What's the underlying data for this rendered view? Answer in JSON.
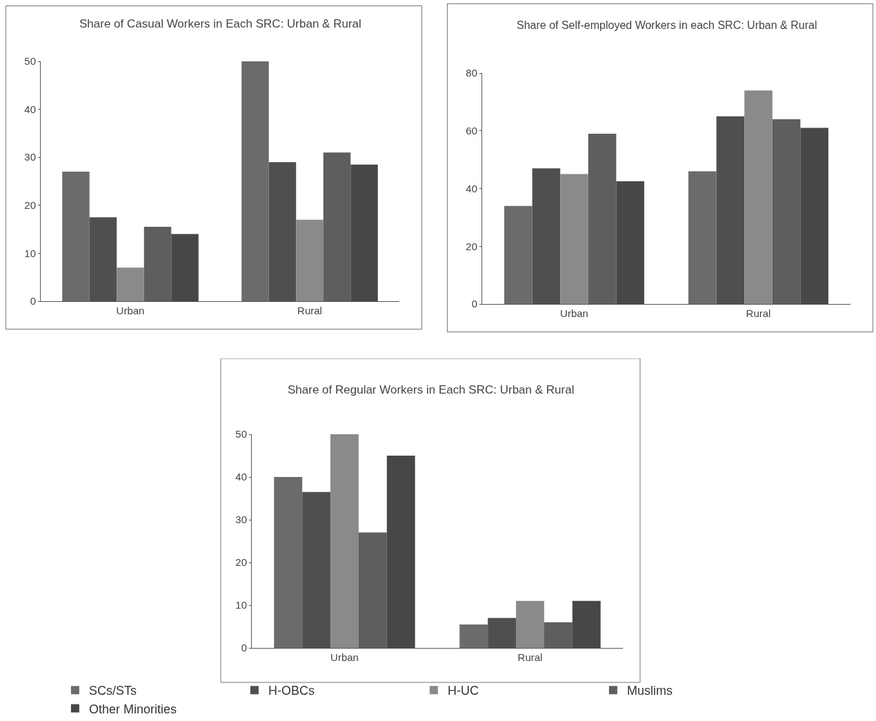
{
  "chart_data": [
    {
      "type": "bar",
      "title": "Share of Casual Workers in Each SRC: Urban & Rural",
      "categories": [
        "Urban",
        "Rural"
      ],
      "ylim": [
        0,
        50
      ],
      "yticks": [
        0,
        10,
        20,
        30,
        40,
        50
      ],
      "grid": false,
      "legend": false,
      "series": [
        {
          "color": "#6b6b6b",
          "values": [
            27,
            50
          ]
        },
        {
          "color": "#4f4f4f",
          "values": [
            17.5,
            29
          ]
        },
        {
          "color": "#8a8a8a",
          "values": [
            7,
            17
          ]
        },
        {
          "color": "#5e5e5e",
          "values": [
            15.5,
            31
          ]
        },
        {
          "color": "#474747",
          "values": [
            14,
            28.5
          ]
        }
      ]
    },
    {
      "type": "bar",
      "title": "Share of Self-employed Workers in each SRC: Urban & Rural",
      "categories": [
        "Urban",
        "Rural"
      ],
      "ylim": [
        0,
        80
      ],
      "yticks": [
        0,
        20,
        40,
        60,
        80
      ],
      "grid": false,
      "legend": false,
      "series": [
        {
          "color": "#6b6b6b",
          "values": [
            34,
            46
          ]
        },
        {
          "color": "#4f4f4f",
          "values": [
            47,
            65
          ]
        },
        {
          "color": "#8a8a8a",
          "values": [
            45,
            74
          ]
        },
        {
          "color": "#5e5e5e",
          "values": [
            59,
            64
          ]
        },
        {
          "color": "#474747",
          "values": [
            42.5,
            61
          ]
        }
      ]
    },
    {
      "type": "bar",
      "title": "Share of Regular Workers in Each SRC: Urban & Rural",
      "categories": [
        "Urban",
        "Rural"
      ],
      "ylim": [
        0,
        50
      ],
      "yticks": [
        0,
        10,
        20,
        30,
        40,
        50
      ],
      "grid": false,
      "legend": "bottom",
      "series": [
        {
          "name": "SCs/STs",
          "color": "#6b6b6b",
          "values": [
            40,
            5.5
          ]
        },
        {
          "name": "H-OBCs",
          "color": "#4f4f4f",
          "values": [
            36.5,
            7
          ]
        },
        {
          "name": "H-UC",
          "color": "#8a8a8a",
          "values": [
            50,
            11
          ]
        },
        {
          "name": "Muslims",
          "color": "#5e5e5e",
          "values": [
            27,
            6
          ]
        },
        {
          "name": "Other Minorities",
          "color": "#474747",
          "values": [
            45,
            11
          ]
        }
      ]
    }
  ]
}
